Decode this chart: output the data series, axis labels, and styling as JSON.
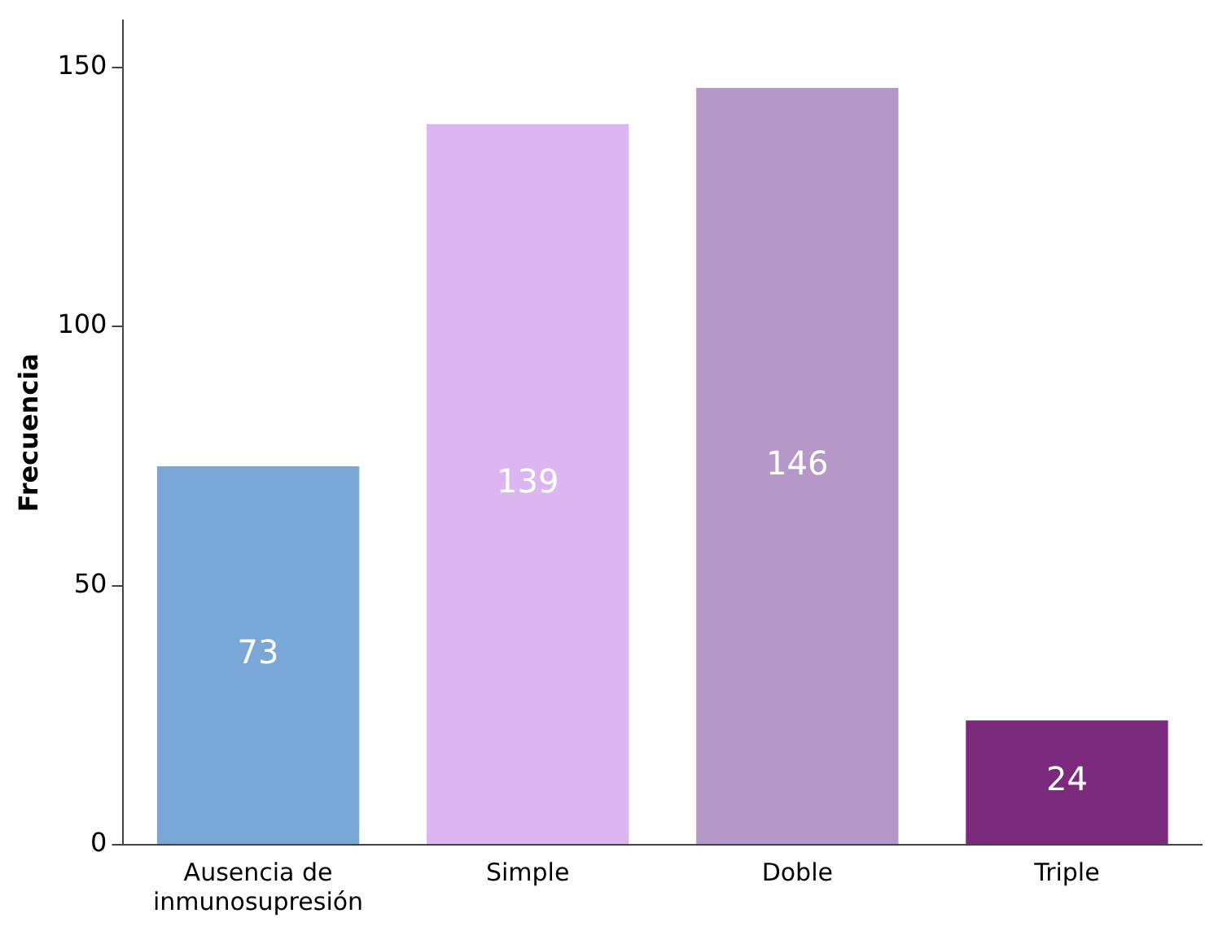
{
  "chart_data": {
    "type": "bar",
    "ylabel": "Frecuencia",
    "categories": [
      "Ausencia de inmunosupresión",
      "Simple",
      "Doble",
      "Triple"
    ],
    "values": [
      73,
      139,
      146,
      24
    ],
    "colors": [
      "#7aa8d6",
      "#dcb6f0",
      "#b598c8",
      "#7b2a7e"
    ],
    "ylim": [
      0,
      159
    ],
    "yticks": [
      0,
      50,
      100,
      150
    ],
    "grid": false,
    "legend": false,
    "data_labels": true
  }
}
